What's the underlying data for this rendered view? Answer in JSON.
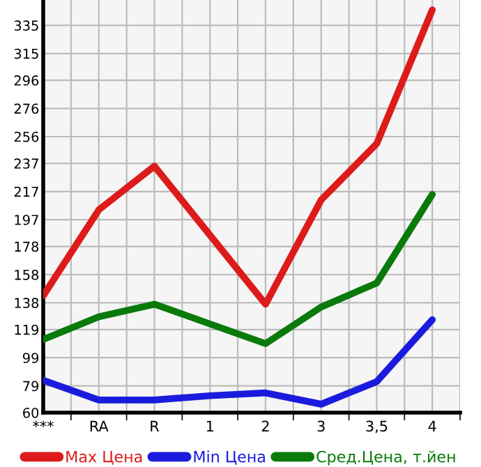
{
  "chart_data": {
    "type": "line",
    "categories": [
      "***",
      "RA",
      "R",
      "1",
      "2",
      "3",
      "3,5",
      "4"
    ],
    "series": [
      {
        "name": "Max Цена",
        "color": "#dd1b1b",
        "values": [
          143,
          204,
          235,
          186,
          137,
          211,
          251,
          346
        ]
      },
      {
        "name": "Min Цена",
        "color": "#1b1bdd",
        "values": [
          83,
          69,
          69,
          72,
          74,
          66,
          82,
          126
        ]
      },
      {
        "name": "Сред.Цена, т.йен",
        "color": "#0a7a0a",
        "values": [
          112,
          128,
          137,
          123,
          109,
          135,
          152,
          215
        ]
      }
    ],
    "ylim": [
      60,
      353
    ],
    "yticks": [
      60,
      79,
      99,
      119,
      138,
      158,
      178,
      197,
      217,
      237,
      256,
      276,
      296,
      315,
      335
    ],
    "grid": true,
    "legend": "bottom",
    "marker": "none",
    "line_style": "solid"
  }
}
